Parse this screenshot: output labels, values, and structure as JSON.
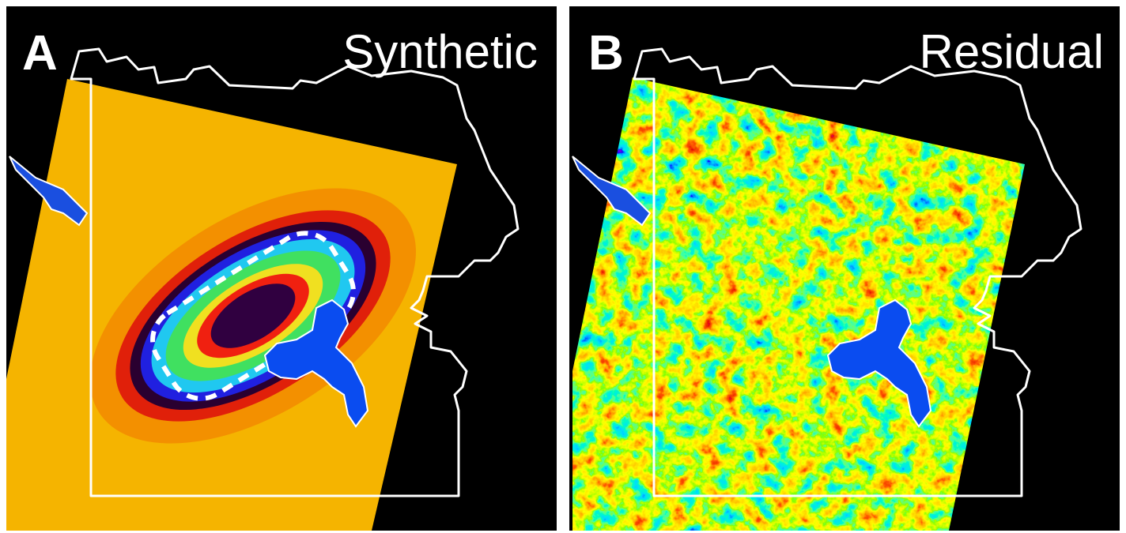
{
  "panels": [
    {
      "letter": "A",
      "title": "Synthetic"
    },
    {
      "letter": "B",
      "title": "Residual"
    }
  ]
}
